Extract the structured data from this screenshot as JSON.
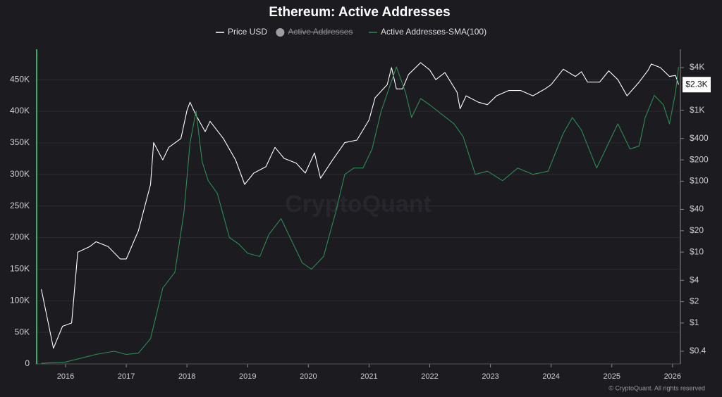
{
  "chart_data": {
    "type": "line",
    "title": "Ethereum: Active Addresses",
    "watermark": "CryptoQuant",
    "footer": "© CryptoQuant. All rights reserved",
    "xlim": [
      2015.5,
      2026.13
    ],
    "xticks": [
      2016,
      2017,
      2018,
      2019,
      2020,
      2021,
      2022,
      2023,
      2024,
      2025,
      2026
    ],
    "ylim": [
      0,
      498000
    ],
    "yticks": [
      {
        "value": 0,
        "label": "0"
      },
      {
        "value": 50000,
        "label": "50K"
      },
      {
        "value": 100000,
        "label": "100K"
      },
      {
        "value": 150000,
        "label": "150K"
      },
      {
        "value": 200000,
        "label": "200K"
      },
      {
        "value": 250000,
        "label": "250K"
      },
      {
        "value": 300000,
        "label": "300K"
      },
      {
        "value": 350000,
        "label": "350K"
      },
      {
        "value": 400000,
        "label": "400K"
      },
      {
        "value": 450000,
        "label": "450K"
      }
    ],
    "y2lim": [
      0.265,
      7250
    ],
    "y2scale": "log",
    "y2ticks": [
      {
        "value": 0.4,
        "label": "$0.4"
      },
      {
        "value": 1,
        "label": "$1"
      },
      {
        "value": 2,
        "label": "$2"
      },
      {
        "value": 4,
        "label": "$4"
      },
      {
        "value": 10,
        "label": "$10"
      },
      {
        "value": 20,
        "label": "$20"
      },
      {
        "value": 40,
        "label": "$40"
      },
      {
        "value": 100,
        "label": "$100"
      },
      {
        "value": 200,
        "label": "$200"
      },
      {
        "value": 400,
        "label": "$400"
      },
      {
        "value": 1000,
        "label": "$1K"
      },
      {
        "value": 4000,
        "label": "$4K"
      }
    ],
    "grid": true,
    "last_price": {
      "value": 2300,
      "label": "$2.3K"
    },
    "series": [
      {
        "name": "Price USD",
        "color": "#ffffff",
        "axis": "y2",
        "x": [
          2015.6,
          2015.8,
          2015.95,
          2016.1,
          2016.2,
          2016.4,
          2016.5,
          2016.7,
          2016.9,
          2017.0,
          2017.2,
          2017.4,
          2017.45,
          2017.6,
          2017.7,
          2017.9,
          2018.0,
          2018.05,
          2018.15,
          2018.3,
          2018.38,
          2018.6,
          2018.8,
          2018.95,
          2019.1,
          2019.3,
          2019.45,
          2019.6,
          2019.8,
          2019.95,
          2020.1,
          2020.2,
          2020.4,
          2020.6,
          2020.8,
          2021.0,
          2021.1,
          2021.3,
          2021.37,
          2021.45,
          2021.55,
          2021.65,
          2021.85,
          2022.0,
          2022.1,
          2022.25,
          2022.45,
          2022.5,
          2022.6,
          2022.8,
          2022.95,
          2023.1,
          2023.3,
          2023.5,
          2023.7,
          2023.9,
          2024.0,
          2024.2,
          2024.4,
          2024.5,
          2024.6,
          2024.8,
          2024.95,
          2025.1,
          2025.25,
          2025.45,
          2025.6,
          2025.65,
          2025.8,
          2025.95,
          2026.05,
          2026.1
        ],
        "values": [
          3,
          0.44,
          0.9,
          1,
          10,
          12,
          14,
          12,
          8,
          8,
          20,
          90,
          350,
          200,
          300,
          400,
          1000,
          1300,
          850,
          500,
          700,
          400,
          200,
          90,
          130,
          160,
          300,
          210,
          180,
          130,
          250,
          110,
          200,
          350,
          380,
          730,
          1500,
          2300,
          4000,
          2000,
          2000,
          3200,
          4700,
          3700,
          2700,
          3400,
          1800,
          1050,
          1600,
          1300,
          1200,
          1600,
          1900,
          1900,
          1600,
          2000,
          2300,
          3800,
          3000,
          3500,
          2500,
          2500,
          3600,
          2700,
          1600,
          2500,
          3700,
          4500,
          4000,
          3000,
          3100,
          2300
        ]
      },
      {
        "name": "Active Addresses",
        "color": "#9e9e9e",
        "hidden": true
      },
      {
        "name": "Active Addresses-SMA(100)",
        "color": "#2e8b57",
        "x": [
          2015.6,
          2016.0,
          2016.5,
          2016.8,
          2017.0,
          2017.2,
          2017.4,
          2017.5,
          2017.6,
          2017.8,
          2017.95,
          2018.05,
          2018.15,
          2018.25,
          2018.35,
          2018.5,
          2018.7,
          2018.85,
          2019.0,
          2019.2,
          2019.35,
          2019.55,
          2019.7,
          2019.9,
          2020.05,
          2020.25,
          2020.45,
          2020.6,
          2020.75,
          2020.9,
          2021.05,
          2021.2,
          2021.45,
          2021.6,
          2021.7,
          2021.85,
          2022.0,
          2022.2,
          2022.4,
          2022.55,
          2022.75,
          2022.95,
          2023.2,
          2023.45,
          2023.7,
          2023.95,
          2024.2,
          2024.35,
          2024.5,
          2024.75,
          2024.95,
          2025.1,
          2025.3,
          2025.45,
          2025.55,
          2025.7,
          2025.85,
          2025.95,
          2026.05,
          2026.1
        ],
        "values": [
          1000,
          3000,
          15000,
          20000,
          15000,
          17000,
          40000,
          80000,
          120000,
          145000,
          240000,
          350000,
          400000,
          320000,
          290000,
          270000,
          200000,
          190000,
          175000,
          170000,
          205000,
          230000,
          200000,
          160000,
          150000,
          170000,
          240000,
          300000,
          310000,
          310000,
          340000,
          400000,
          470000,
          430000,
          390000,
          420000,
          410000,
          395000,
          380000,
          360000,
          300000,
          305000,
          290000,
          310000,
          300000,
          305000,
          365000,
          390000,
          370000,
          310000,
          350000,
          380000,
          340000,
          345000,
          390000,
          425000,
          410000,
          380000,
          430000,
          470000
        ]
      }
    ]
  }
}
